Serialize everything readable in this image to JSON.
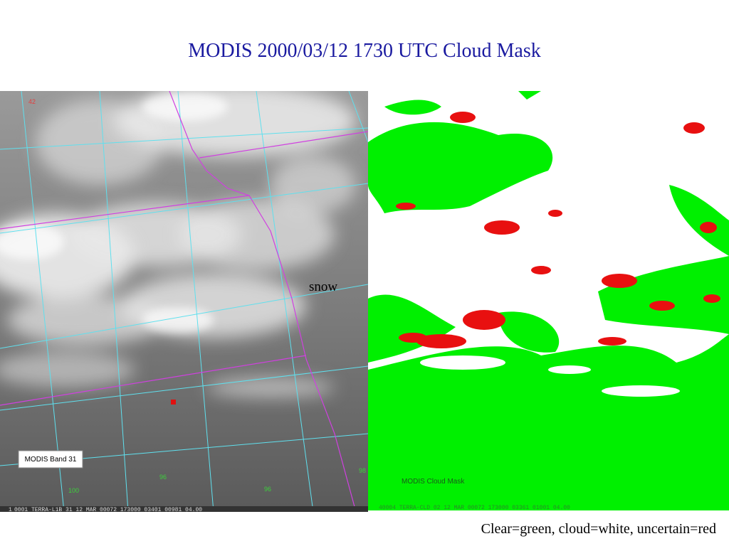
{
  "title": "MODIS 2000/03/12 1730 UTC Cloud Mask",
  "left_panel": {
    "label": "MODIS Band 31",
    "footer_index": "1",
    "footer": "0001 TERRA-L1B 31 12 MAR 00072 173000 03401 00981 04.00",
    "grid_labels": [
      "42",
      "100",
      "96",
      "96",
      "98"
    ],
    "annotation": "snow"
  },
  "right_panel": {
    "label": "MODIS Cloud Mask",
    "footer": "40004 TERRA-CLD 02 12 MAR 00072 173000 03361 01001 04.00"
  },
  "caption": "Clear=green, cloud=white, uncertain=red"
}
